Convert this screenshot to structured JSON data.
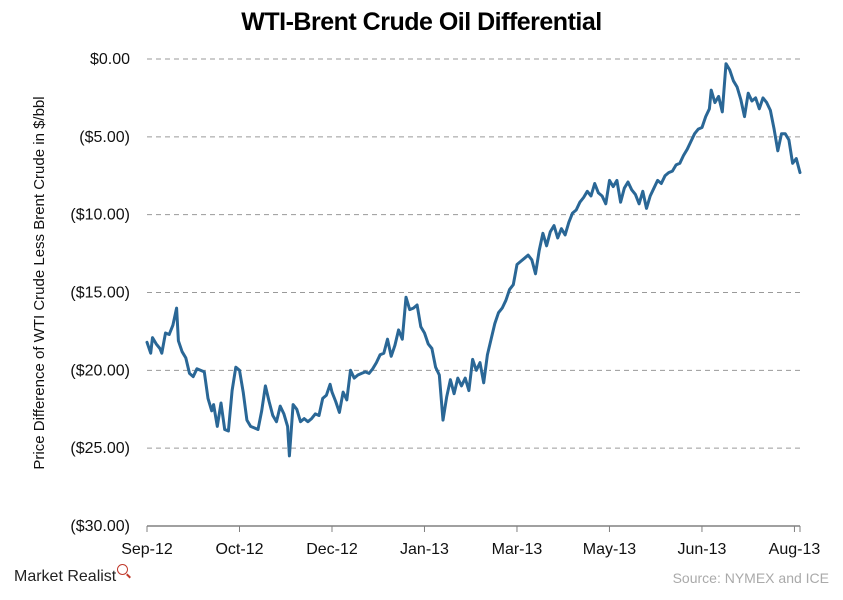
{
  "chart_data": {
    "type": "line",
    "title": "WTI-Brent Crude Oil Differential",
    "ylabel": "Price Difference of WTI Crude Less Brent Crude in $/bbl",
    "xlabel": "",
    "ylim": [
      -30,
      0
    ],
    "y_ticks": [
      {
        "value": 0,
        "label": "$0.00"
      },
      {
        "value": -5,
        "label": "($5.00)"
      },
      {
        "value": -10,
        "label": "($10.00)"
      },
      {
        "value": -15,
        "label": "($15.00)"
      },
      {
        "value": -20,
        "label": "($20.00)"
      },
      {
        "value": -25,
        "label": "($25.00)"
      },
      {
        "value": -30,
        "label": "($30.00)"
      }
    ],
    "x_ticks": [
      {
        "date": "2012-09-01",
        "label": "Sep-12"
      },
      {
        "date": "2012-10-21",
        "label": "Oct-12"
      },
      {
        "date": "2012-12-10",
        "label": "Dec-12"
      },
      {
        "date": "2013-01-29",
        "label": "Jan-13"
      },
      {
        "date": "2013-03-20",
        "label": "Mar-13"
      },
      {
        "date": "2013-05-09",
        "label": "May-13"
      },
      {
        "date": "2013-06-28",
        "label": "Jun-13"
      },
      {
        "date": "2013-08-17",
        "label": "Aug-13"
      }
    ],
    "grid": "horizontal-dashed",
    "line_color": "#2a6796",
    "series": [
      {
        "name": "",
        "points": [
          [
            "2012-09-01",
            -18.2
          ],
          [
            "2012-09-03",
            -18.9
          ],
          [
            "2012-09-04",
            -17.9
          ],
          [
            "2012-09-06",
            -18.3
          ],
          [
            "2012-09-08",
            -18.6
          ],
          [
            "2012-09-09",
            -18.9
          ],
          [
            "2012-09-11",
            -17.6
          ],
          [
            "2012-09-13",
            -17.7
          ],
          [
            "2012-09-15",
            -17.1
          ],
          [
            "2012-09-17",
            -16.0
          ],
          [
            "2012-09-18",
            -18.1
          ],
          [
            "2012-09-20",
            -18.8
          ],
          [
            "2012-09-22",
            -19.2
          ],
          [
            "2012-09-24",
            -20.2
          ],
          [
            "2012-09-26",
            -20.4
          ],
          [
            "2012-09-28",
            -19.9
          ],
          [
            "2012-10-02",
            -20.1
          ],
          [
            "2012-10-04",
            -21.8
          ],
          [
            "2012-10-06",
            -22.6
          ],
          [
            "2012-10-07",
            -22.2
          ],
          [
            "2012-10-09",
            -23.6
          ],
          [
            "2012-10-11",
            -22.1
          ],
          [
            "2012-10-13",
            -23.8
          ],
          [
            "2012-10-15",
            -23.9
          ],
          [
            "2012-10-17",
            -21.3
          ],
          [
            "2012-10-19",
            -19.8
          ],
          [
            "2012-10-21",
            -20.0
          ],
          [
            "2012-10-23",
            -21.4
          ],
          [
            "2012-10-25",
            -23.2
          ],
          [
            "2012-10-27",
            -23.6
          ],
          [
            "2012-10-29",
            -23.7
          ],
          [
            "2012-10-31",
            -23.8
          ],
          [
            "2012-11-02",
            -22.6
          ],
          [
            "2012-11-04",
            -21.0
          ],
          [
            "2012-11-06",
            -22.0
          ],
          [
            "2012-11-08",
            -22.9
          ],
          [
            "2012-11-10",
            -23.3
          ],
          [
            "2012-11-12",
            -22.3
          ],
          [
            "2012-11-14",
            -22.8
          ],
          [
            "2012-11-16",
            -23.6
          ],
          [
            "2012-11-17",
            -25.5
          ],
          [
            "2012-11-19",
            -22.2
          ],
          [
            "2012-11-21",
            -22.5
          ],
          [
            "2012-11-23",
            -23.3
          ],
          [
            "2012-11-25",
            -23.1
          ],
          [
            "2012-11-27",
            -23.3
          ],
          [
            "2012-11-29",
            -23.1
          ],
          [
            "2012-12-01",
            -22.8
          ],
          [
            "2012-12-03",
            -22.9
          ],
          [
            "2012-12-05",
            -21.8
          ],
          [
            "2012-12-07",
            -21.6
          ],
          [
            "2012-12-09",
            -20.9
          ],
          [
            "2012-12-10",
            -21.4
          ],
          [
            "2012-12-12",
            -22.0
          ],
          [
            "2012-12-14",
            -22.7
          ],
          [
            "2012-12-16",
            -21.4
          ],
          [
            "2012-12-18",
            -21.9
          ],
          [
            "2012-12-20",
            -20.0
          ],
          [
            "2012-12-22",
            -20.5
          ],
          [
            "2012-12-24",
            -20.3
          ],
          [
            "2012-12-26",
            -20.2
          ],
          [
            "2012-12-28",
            -20.1
          ],
          [
            "2012-12-30",
            -20.2
          ],
          [
            "2013-01-01",
            -19.9
          ],
          [
            "2013-01-03",
            -19.5
          ],
          [
            "2013-01-05",
            -19.0
          ],
          [
            "2013-01-07",
            -18.9
          ],
          [
            "2013-01-09",
            -18.0
          ],
          [
            "2013-01-11",
            -19.1
          ],
          [
            "2013-01-13",
            -18.4
          ],
          [
            "2013-01-15",
            -17.4
          ],
          [
            "2013-01-17",
            -18.0
          ],
          [
            "2013-01-19",
            -15.3
          ],
          [
            "2013-01-21",
            -16.1
          ],
          [
            "2013-01-23",
            -16.0
          ],
          [
            "2013-01-25",
            -15.8
          ],
          [
            "2013-01-27",
            -17.2
          ],
          [
            "2013-01-29",
            -17.6
          ],
          [
            "2013-01-31",
            -18.3
          ],
          [
            "2013-02-02",
            -18.6
          ],
          [
            "2013-02-04",
            -19.8
          ],
          [
            "2013-02-06",
            -20.3
          ],
          [
            "2013-02-08",
            -23.2
          ],
          [
            "2013-02-10",
            -21.7
          ],
          [
            "2013-02-12",
            -20.6
          ],
          [
            "2013-02-14",
            -21.5
          ],
          [
            "2013-02-16",
            -20.5
          ],
          [
            "2013-02-18",
            -21.0
          ],
          [
            "2013-02-20",
            -20.5
          ],
          [
            "2013-02-22",
            -21.3
          ],
          [
            "2013-02-24",
            -19.3
          ],
          [
            "2013-02-26",
            -20.0
          ],
          [
            "2013-02-28",
            -19.5
          ],
          [
            "2013-03-02",
            -20.8
          ],
          [
            "2013-03-04",
            -19.0
          ],
          [
            "2013-03-06",
            -18.0
          ],
          [
            "2013-03-08",
            -17.0
          ],
          [
            "2013-03-10",
            -16.3
          ],
          [
            "2013-03-12",
            -16.0
          ],
          [
            "2013-03-14",
            -15.5
          ],
          [
            "2013-03-16",
            -14.8
          ],
          [
            "2013-03-18",
            -14.5
          ],
          [
            "2013-03-20",
            -13.2
          ],
          [
            "2013-03-22",
            -13.0
          ],
          [
            "2013-03-24",
            -12.8
          ],
          [
            "2013-03-26",
            -12.6
          ],
          [
            "2013-03-28",
            -12.9
          ],
          [
            "2013-03-30",
            -13.8
          ],
          [
            "2013-04-01",
            -12.3
          ],
          [
            "2013-04-03",
            -11.2
          ],
          [
            "2013-04-05",
            -12.0
          ],
          [
            "2013-04-07",
            -11.1
          ],
          [
            "2013-04-09",
            -10.7
          ],
          [
            "2013-04-11",
            -11.5
          ],
          [
            "2013-04-13",
            -10.9
          ],
          [
            "2013-04-15",
            -11.3
          ],
          [
            "2013-04-17",
            -10.5
          ],
          [
            "2013-04-19",
            -9.9
          ],
          [
            "2013-04-21",
            -9.7
          ],
          [
            "2013-04-23",
            -9.2
          ],
          [
            "2013-04-25",
            -8.9
          ],
          [
            "2013-04-27",
            -8.5
          ],
          [
            "2013-04-29",
            -8.8
          ],
          [
            "2013-05-01",
            -8.0
          ],
          [
            "2013-05-03",
            -8.6
          ],
          [
            "2013-05-05",
            -8.8
          ],
          [
            "2013-05-07",
            -9.3
          ],
          [
            "2013-05-09",
            -7.8
          ],
          [
            "2013-05-11",
            -8.2
          ],
          [
            "2013-05-13",
            -7.8
          ],
          [
            "2013-05-15",
            -9.2
          ],
          [
            "2013-05-17",
            -8.3
          ],
          [
            "2013-05-19",
            -7.9
          ],
          [
            "2013-05-21",
            -8.4
          ],
          [
            "2013-05-23",
            -8.7
          ],
          [
            "2013-05-25",
            -9.3
          ],
          [
            "2013-05-27",
            -8.5
          ],
          [
            "2013-05-29",
            -9.6
          ],
          [
            "2013-05-31",
            -8.8
          ],
          [
            "2013-06-02",
            -8.3
          ],
          [
            "2013-06-04",
            -7.8
          ],
          [
            "2013-06-06",
            -8.0
          ],
          [
            "2013-06-08",
            -7.5
          ],
          [
            "2013-06-10",
            -7.3
          ],
          [
            "2013-06-12",
            -7.2
          ],
          [
            "2013-06-14",
            -6.8
          ],
          [
            "2013-06-16",
            -6.7
          ],
          [
            "2013-06-18",
            -6.2
          ],
          [
            "2013-06-20",
            -5.8
          ],
          [
            "2013-06-22",
            -5.3
          ],
          [
            "2013-06-24",
            -4.8
          ],
          [
            "2013-06-26",
            -4.5
          ],
          [
            "2013-06-28",
            -4.4
          ],
          [
            "2013-06-30",
            -3.7
          ],
          [
            "2013-07-02",
            -3.2
          ],
          [
            "2013-07-03",
            -2.0
          ],
          [
            "2013-07-05",
            -2.8
          ],
          [
            "2013-07-07",
            -2.4
          ],
          [
            "2013-07-09",
            -3.4
          ],
          [
            "2013-07-11",
            -0.3
          ],
          [
            "2013-07-13",
            -0.7
          ],
          [
            "2013-07-15",
            -1.4
          ],
          [
            "2013-07-17",
            -1.8
          ],
          [
            "2013-07-19",
            -2.6
          ],
          [
            "2013-07-21",
            -3.7
          ],
          [
            "2013-07-23",
            -2.2
          ],
          [
            "2013-07-25",
            -2.7
          ],
          [
            "2013-07-27",
            -2.5
          ],
          [
            "2013-07-29",
            -3.2
          ],
          [
            "2013-07-31",
            -2.5
          ],
          [
            "2013-08-02",
            -2.8
          ],
          [
            "2013-08-04",
            -3.3
          ],
          [
            "2013-08-06",
            -4.5
          ],
          [
            "2013-08-08",
            -5.9
          ],
          [
            "2013-08-10",
            -4.8
          ],
          [
            "2013-08-12",
            -4.8
          ],
          [
            "2013-08-14",
            -5.2
          ],
          [
            "2013-08-16",
            -6.7
          ],
          [
            "2013-08-18",
            -6.4
          ],
          [
            "2013-08-20",
            -7.3
          ]
        ]
      }
    ]
  },
  "footer": {
    "brand": "Market Realist",
    "source": "Source:  NYMEX and ICE"
  }
}
